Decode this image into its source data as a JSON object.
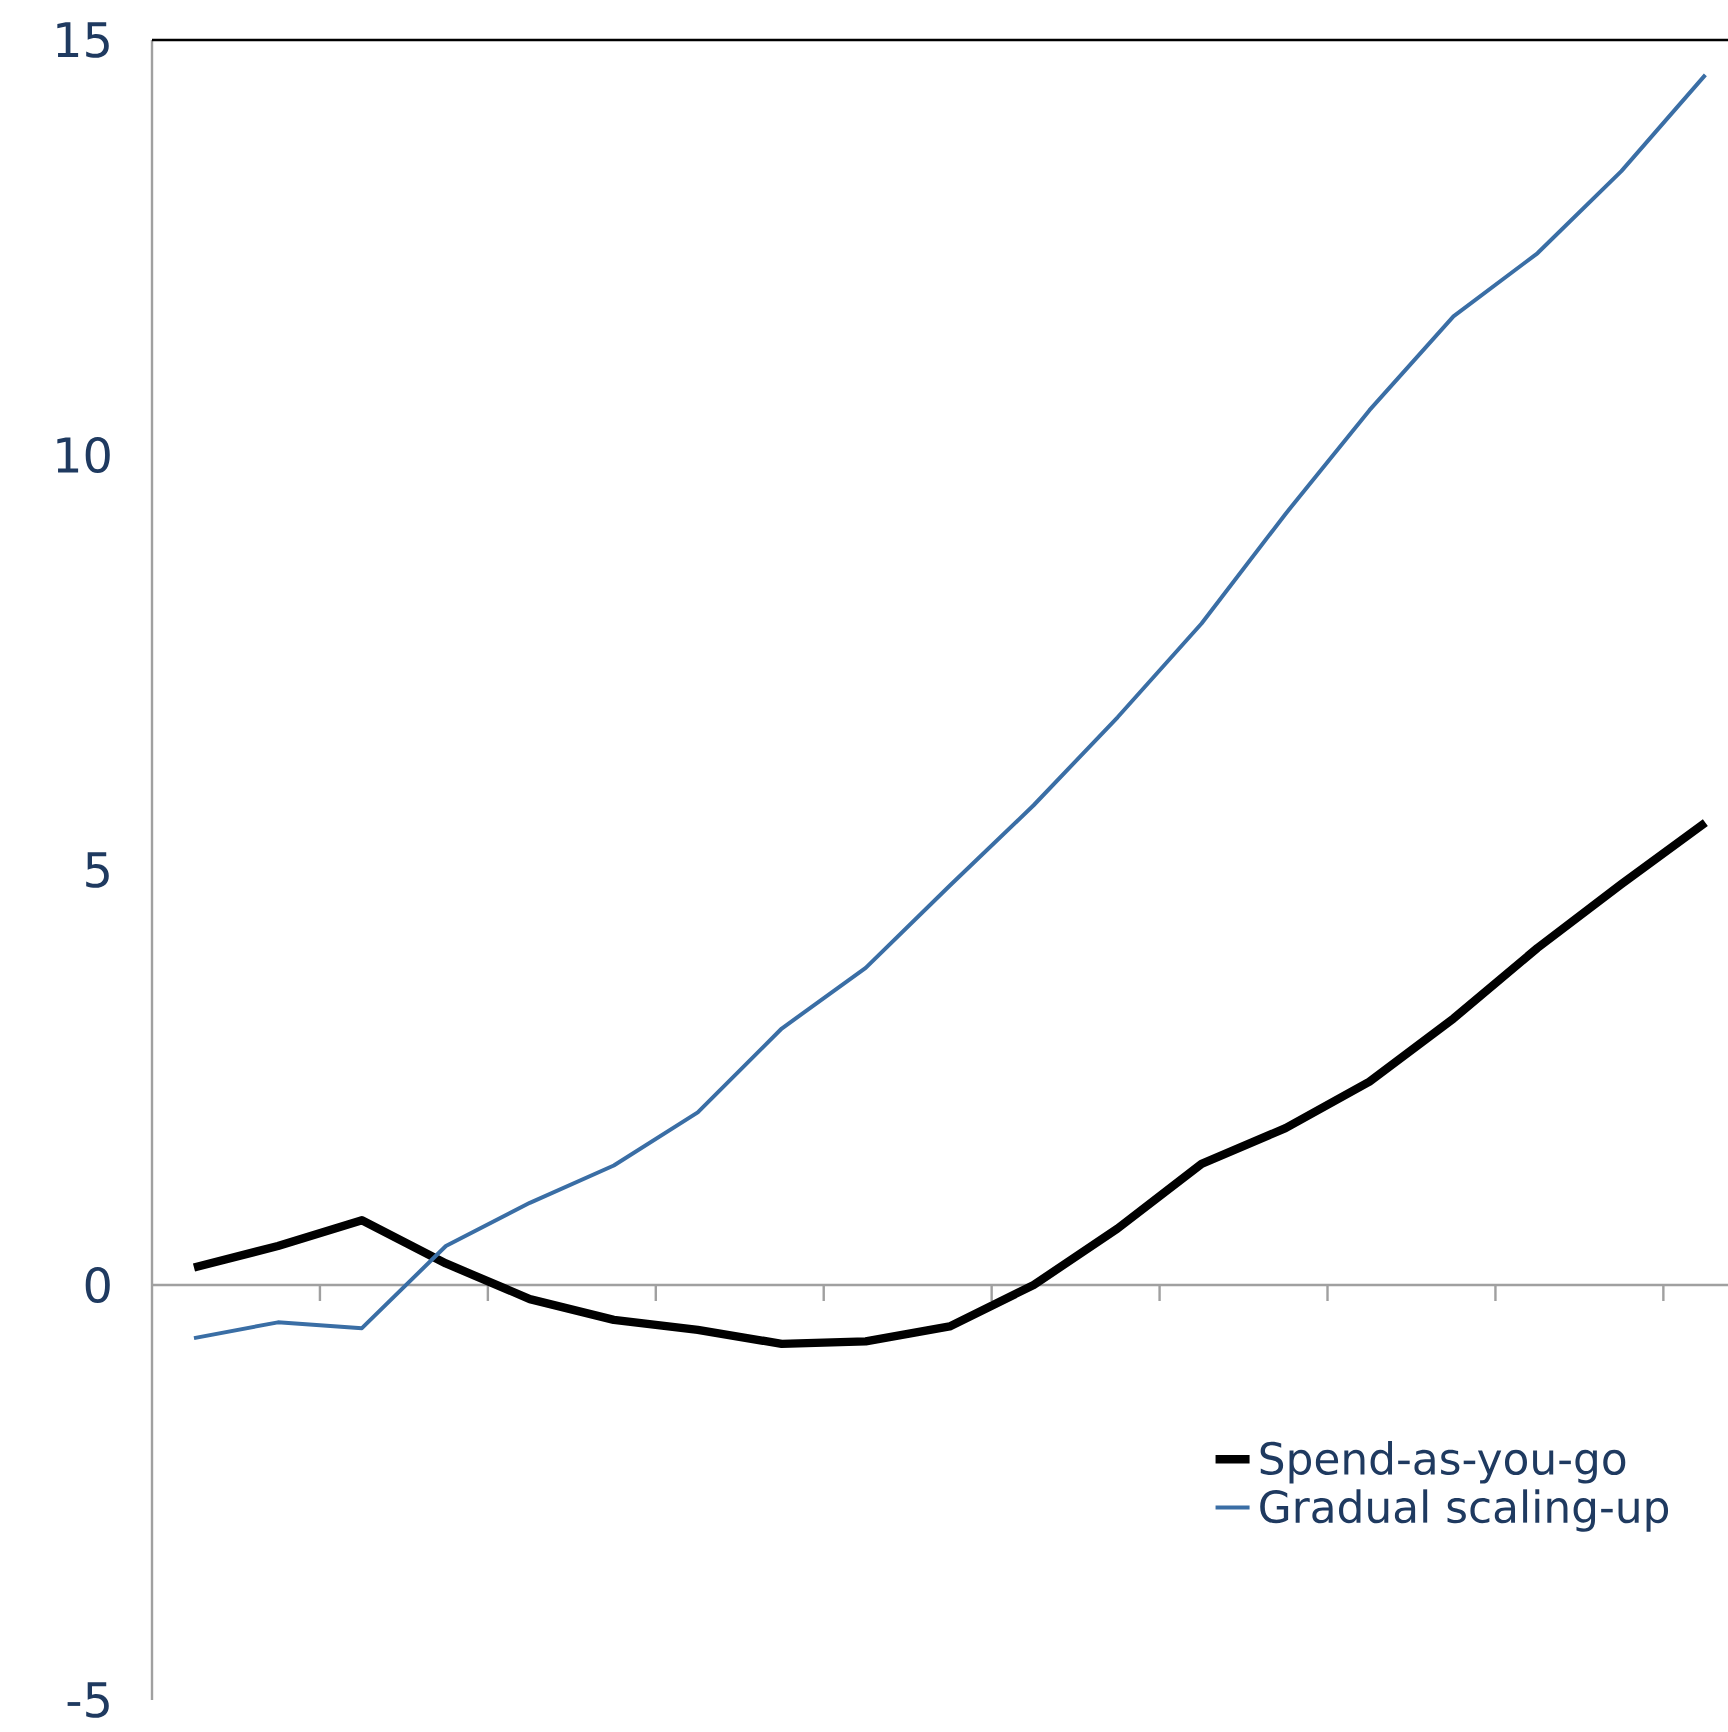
{
  "chart_data": {
    "type": "line",
    "categories": [
      null,
      null,
      null,
      null,
      null,
      null,
      null,
      null,
      null,
      null,
      null,
      null,
      null,
      null,
      null,
      null,
      null,
      null,
      null
    ],
    "series": [
      {
        "name": "Spend-as-you-go",
        "color": "#000000",
        "values": [
          0.21,
          0.47,
          0.78,
          0.26,
          -0.17,
          -0.42,
          -0.54,
          -0.71,
          -0.68,
          -0.5,
          0.0,
          0.68,
          1.46,
          1.89,
          2.45,
          3.21,
          4.06,
          4.83,
          5.57
        ]
      },
      {
        "name": "Gradual scaling-up",
        "color": "#3a6ea5",
        "values": [
          -0.64,
          -0.45,
          -0.52,
          0.47,
          0.99,
          1.44,
          2.08,
          3.09,
          3.82,
          4.81,
          5.78,
          6.84,
          7.97,
          9.29,
          10.54,
          11.67,
          12.43,
          13.42,
          14.58
        ]
      }
    ],
    "ylim": [
      -5,
      15
    ],
    "yticks": [
      -5,
      0,
      5,
      10,
      15
    ],
    "tick_labels": "y",
    "legend": "bottom right",
    "marker": "none",
    "line_style": "solid"
  }
}
